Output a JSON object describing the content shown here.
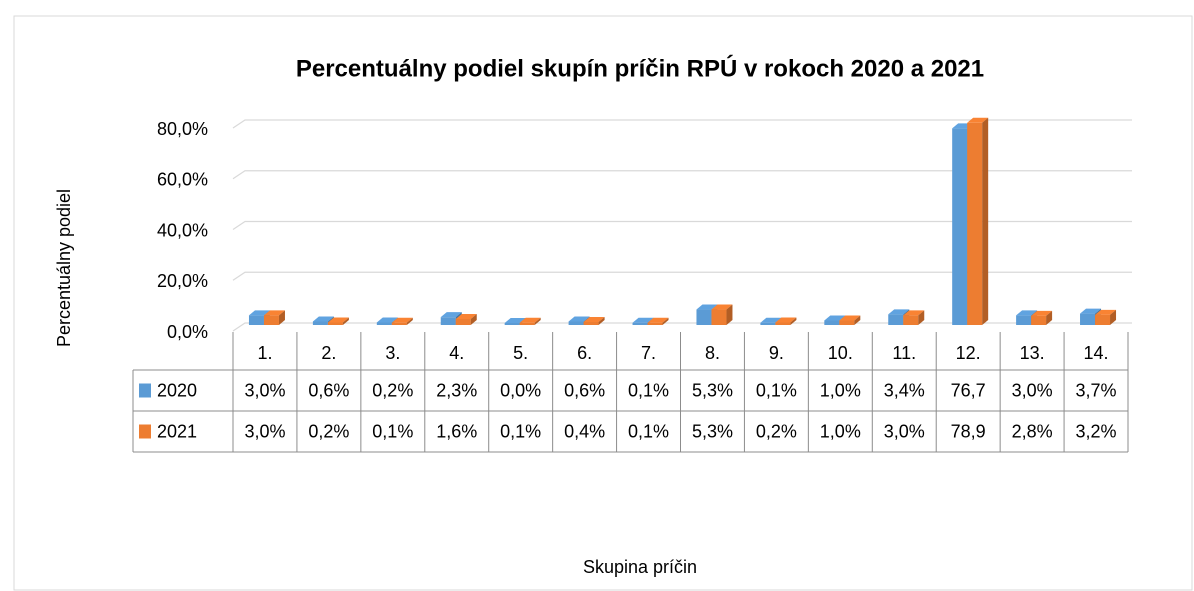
{
  "chart_data": {
    "type": "bar",
    "title": "Percentuálny podiel skupín príčin RPÚ v rokoch 2020 a 2021",
    "x_label": "Skupina príčin",
    "y_label": "Percentuálny podiel",
    "categories": [
      "1.",
      "2.",
      "3.",
      "4.",
      "5.",
      "6.",
      "7.",
      "8.",
      "9.",
      "10.",
      "11.",
      "12.",
      "13.",
      "14."
    ],
    "series": [
      {
        "name": "2020",
        "color": "#5b9bd5",
        "values": [
          3.0,
          0.6,
          0.2,
          2.3,
          0.0,
          0.6,
          0.1,
          5.3,
          0.1,
          1.0,
          3.4,
          76.7,
          3.0,
          3.7
        ],
        "value_labels": [
          "3,0%",
          "0,6%",
          "0,2%",
          "2,3%",
          "0,0%",
          "0,6%",
          "0,1%",
          "5,3%",
          "0,1%",
          "1,0%",
          "3,4%",
          "76,7",
          "3,0%",
          "3,7%"
        ]
      },
      {
        "name": "2021",
        "color": "#ed7d31",
        "values": [
          3.0,
          0.2,
          0.1,
          1.6,
          0.1,
          0.4,
          0.1,
          5.3,
          0.2,
          1.0,
          3.0,
          78.9,
          2.8,
          3.2
        ],
        "value_labels": [
          "3,0%",
          "0,2%",
          "0,1%",
          "1,6%",
          "0,1%",
          "0,4%",
          "0,1%",
          "5,3%",
          "0,2%",
          "1,0%",
          "3,0%",
          "78,9",
          "2,8%",
          "3,2%"
        ]
      }
    ],
    "ylim": [
      0,
      80
    ],
    "yticks": [
      {
        "value": 0,
        "label": "0,0%"
      },
      {
        "value": 20,
        "label": "20,0%"
      },
      {
        "value": 40,
        "label": "40,0%"
      },
      {
        "value": 60,
        "label": "60,0%"
      },
      {
        "value": 80,
        "label": "80,0%"
      }
    ],
    "grid": true,
    "data_table": true
  }
}
